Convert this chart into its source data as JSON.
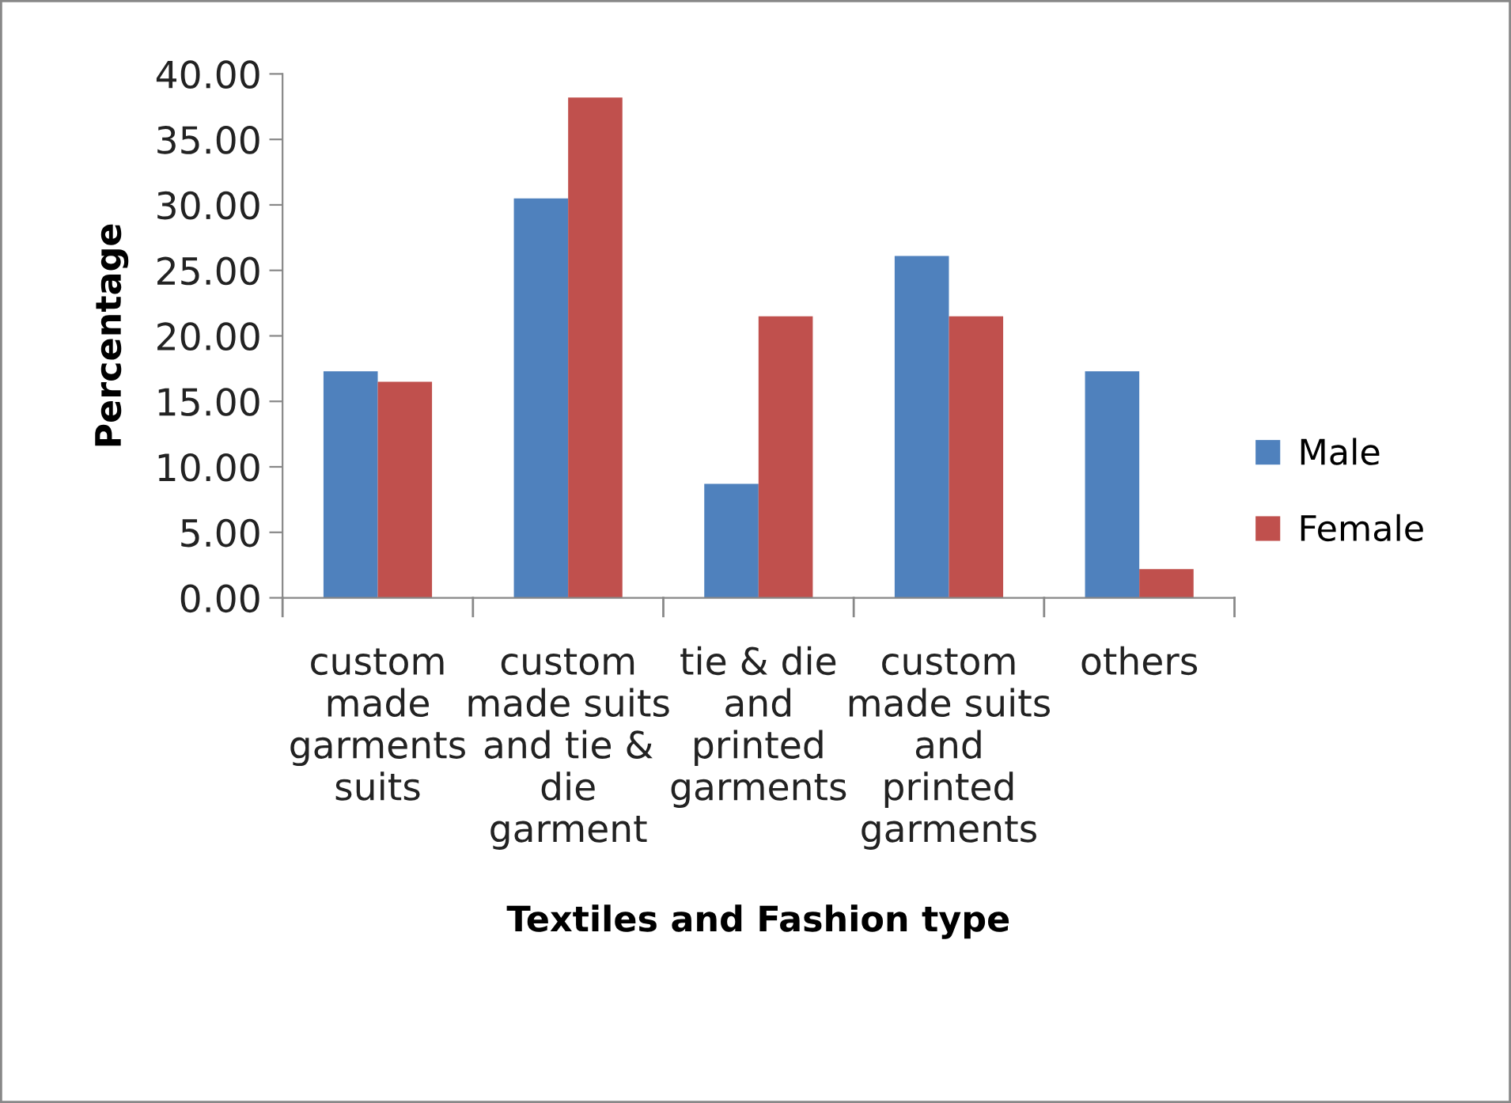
{
  "chart_data": {
    "type": "bar",
    "xlabel": "Textiles and Fashion type",
    "ylabel": "Percentage",
    "categories": [
      "custom\nmade\ngarments\nsuits",
      "custom\nmade suits\nand tie &\ndie\ngarment",
      "tie & die\nand\nprinted\ngarments",
      "custom\nmade suits\nand\nprinted\ngarments",
      "others"
    ],
    "series": [
      {
        "name": "Male",
        "color": "#4f81bd",
        "values": [
          17.3,
          30.5,
          8.7,
          26.1,
          17.3
        ]
      },
      {
        "name": "Female",
        "color": "#c0504d",
        "values": [
          16.5,
          38.2,
          21.5,
          21.5,
          2.2
        ]
      }
    ],
    "ylim": [
      0,
      40
    ],
    "yticks": [
      {
        "value": 0,
        "label": "0.00"
      },
      {
        "value": 5,
        "label": "5.00"
      },
      {
        "value": 10,
        "label": "10.00"
      },
      {
        "value": 15,
        "label": "15.00"
      },
      {
        "value": 20,
        "label": "20.00"
      },
      {
        "value": 25,
        "label": "25.00"
      },
      {
        "value": 30,
        "label": "30.00"
      },
      {
        "value": 35,
        "label": "35.00"
      },
      {
        "value": 40,
        "label": "40.00"
      }
    ],
    "grid": false,
    "legend": "right"
  }
}
